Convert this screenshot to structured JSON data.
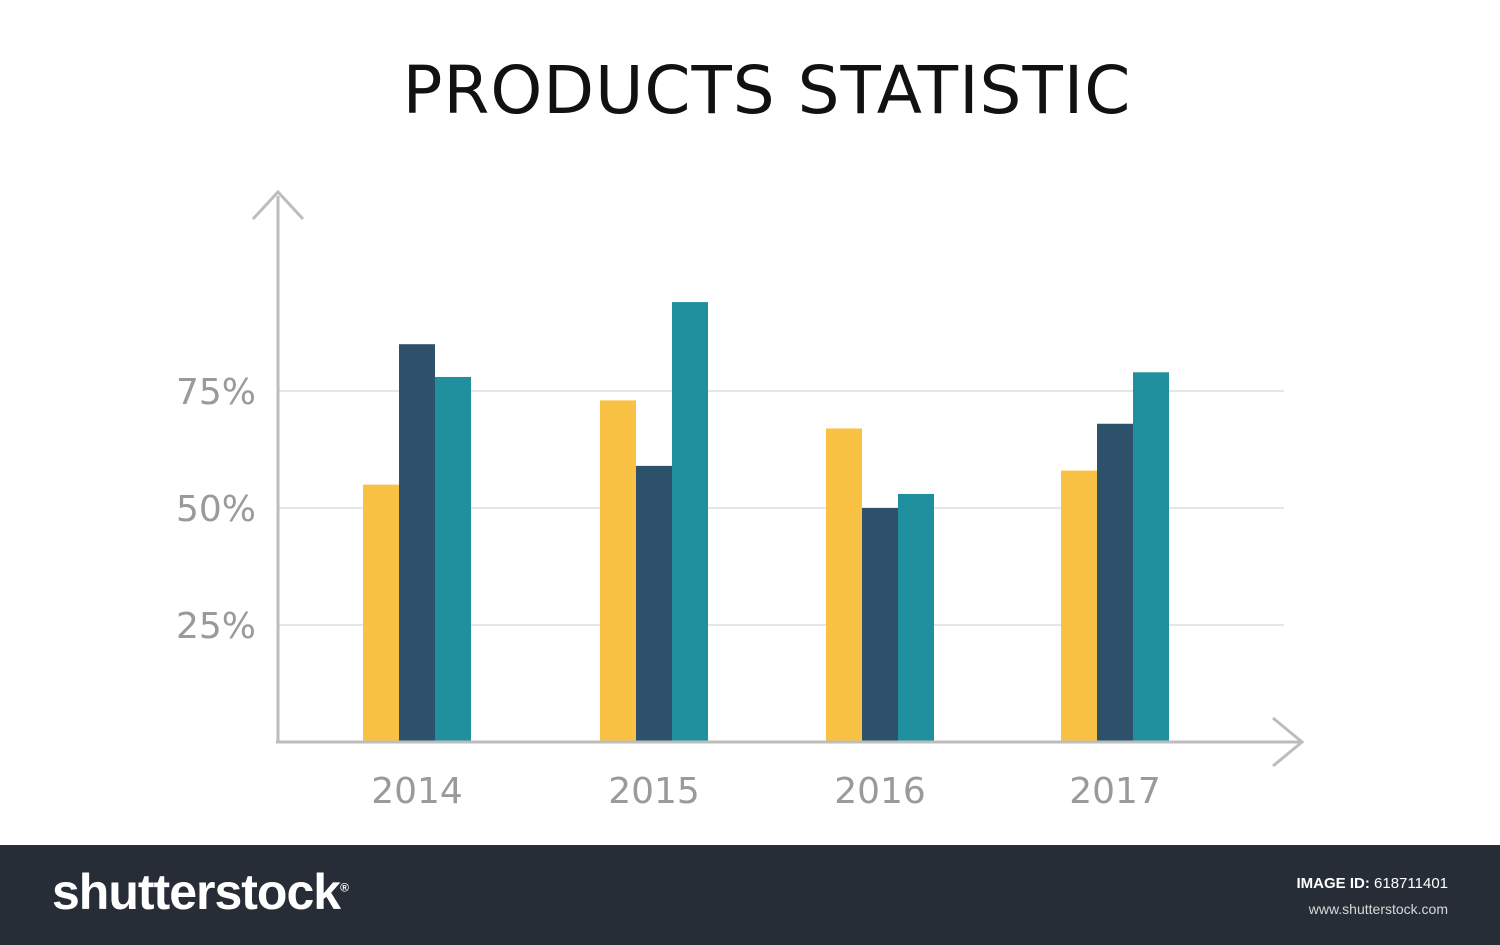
{
  "chart_data": {
    "type": "bar",
    "title": "PRODUCTS STATISTIC",
    "categories": [
      "2014",
      "2015",
      "2016",
      "2017"
    ],
    "series": [
      {
        "values": [
          55,
          73,
          67,
          58
        ],
        "color": "#f9c244"
      },
      {
        "values": [
          85,
          59,
          50,
          68
        ],
        "color": "#2d506b"
      },
      {
        "values": [
          78,
          94,
          53,
          79
        ],
        "color": "#21909e"
      }
    ],
    "yticks": [
      "25%",
      "50%",
      "75%"
    ],
    "ytick_values": [
      25,
      50,
      75
    ],
    "ylim": [
      0,
      100
    ],
    "xlabel": "",
    "ylabel": "",
    "grid": true,
    "legend": "none"
  },
  "footer": {
    "logo": "shutterstock",
    "image_id_label": "IMAGE ID:",
    "image_id": "618711401",
    "site": "www.shutterstock.com"
  },
  "colors": {
    "axis": "#bdbdbd",
    "grid": "#e6e6e6",
    "footer_bg": "#272d37"
  }
}
